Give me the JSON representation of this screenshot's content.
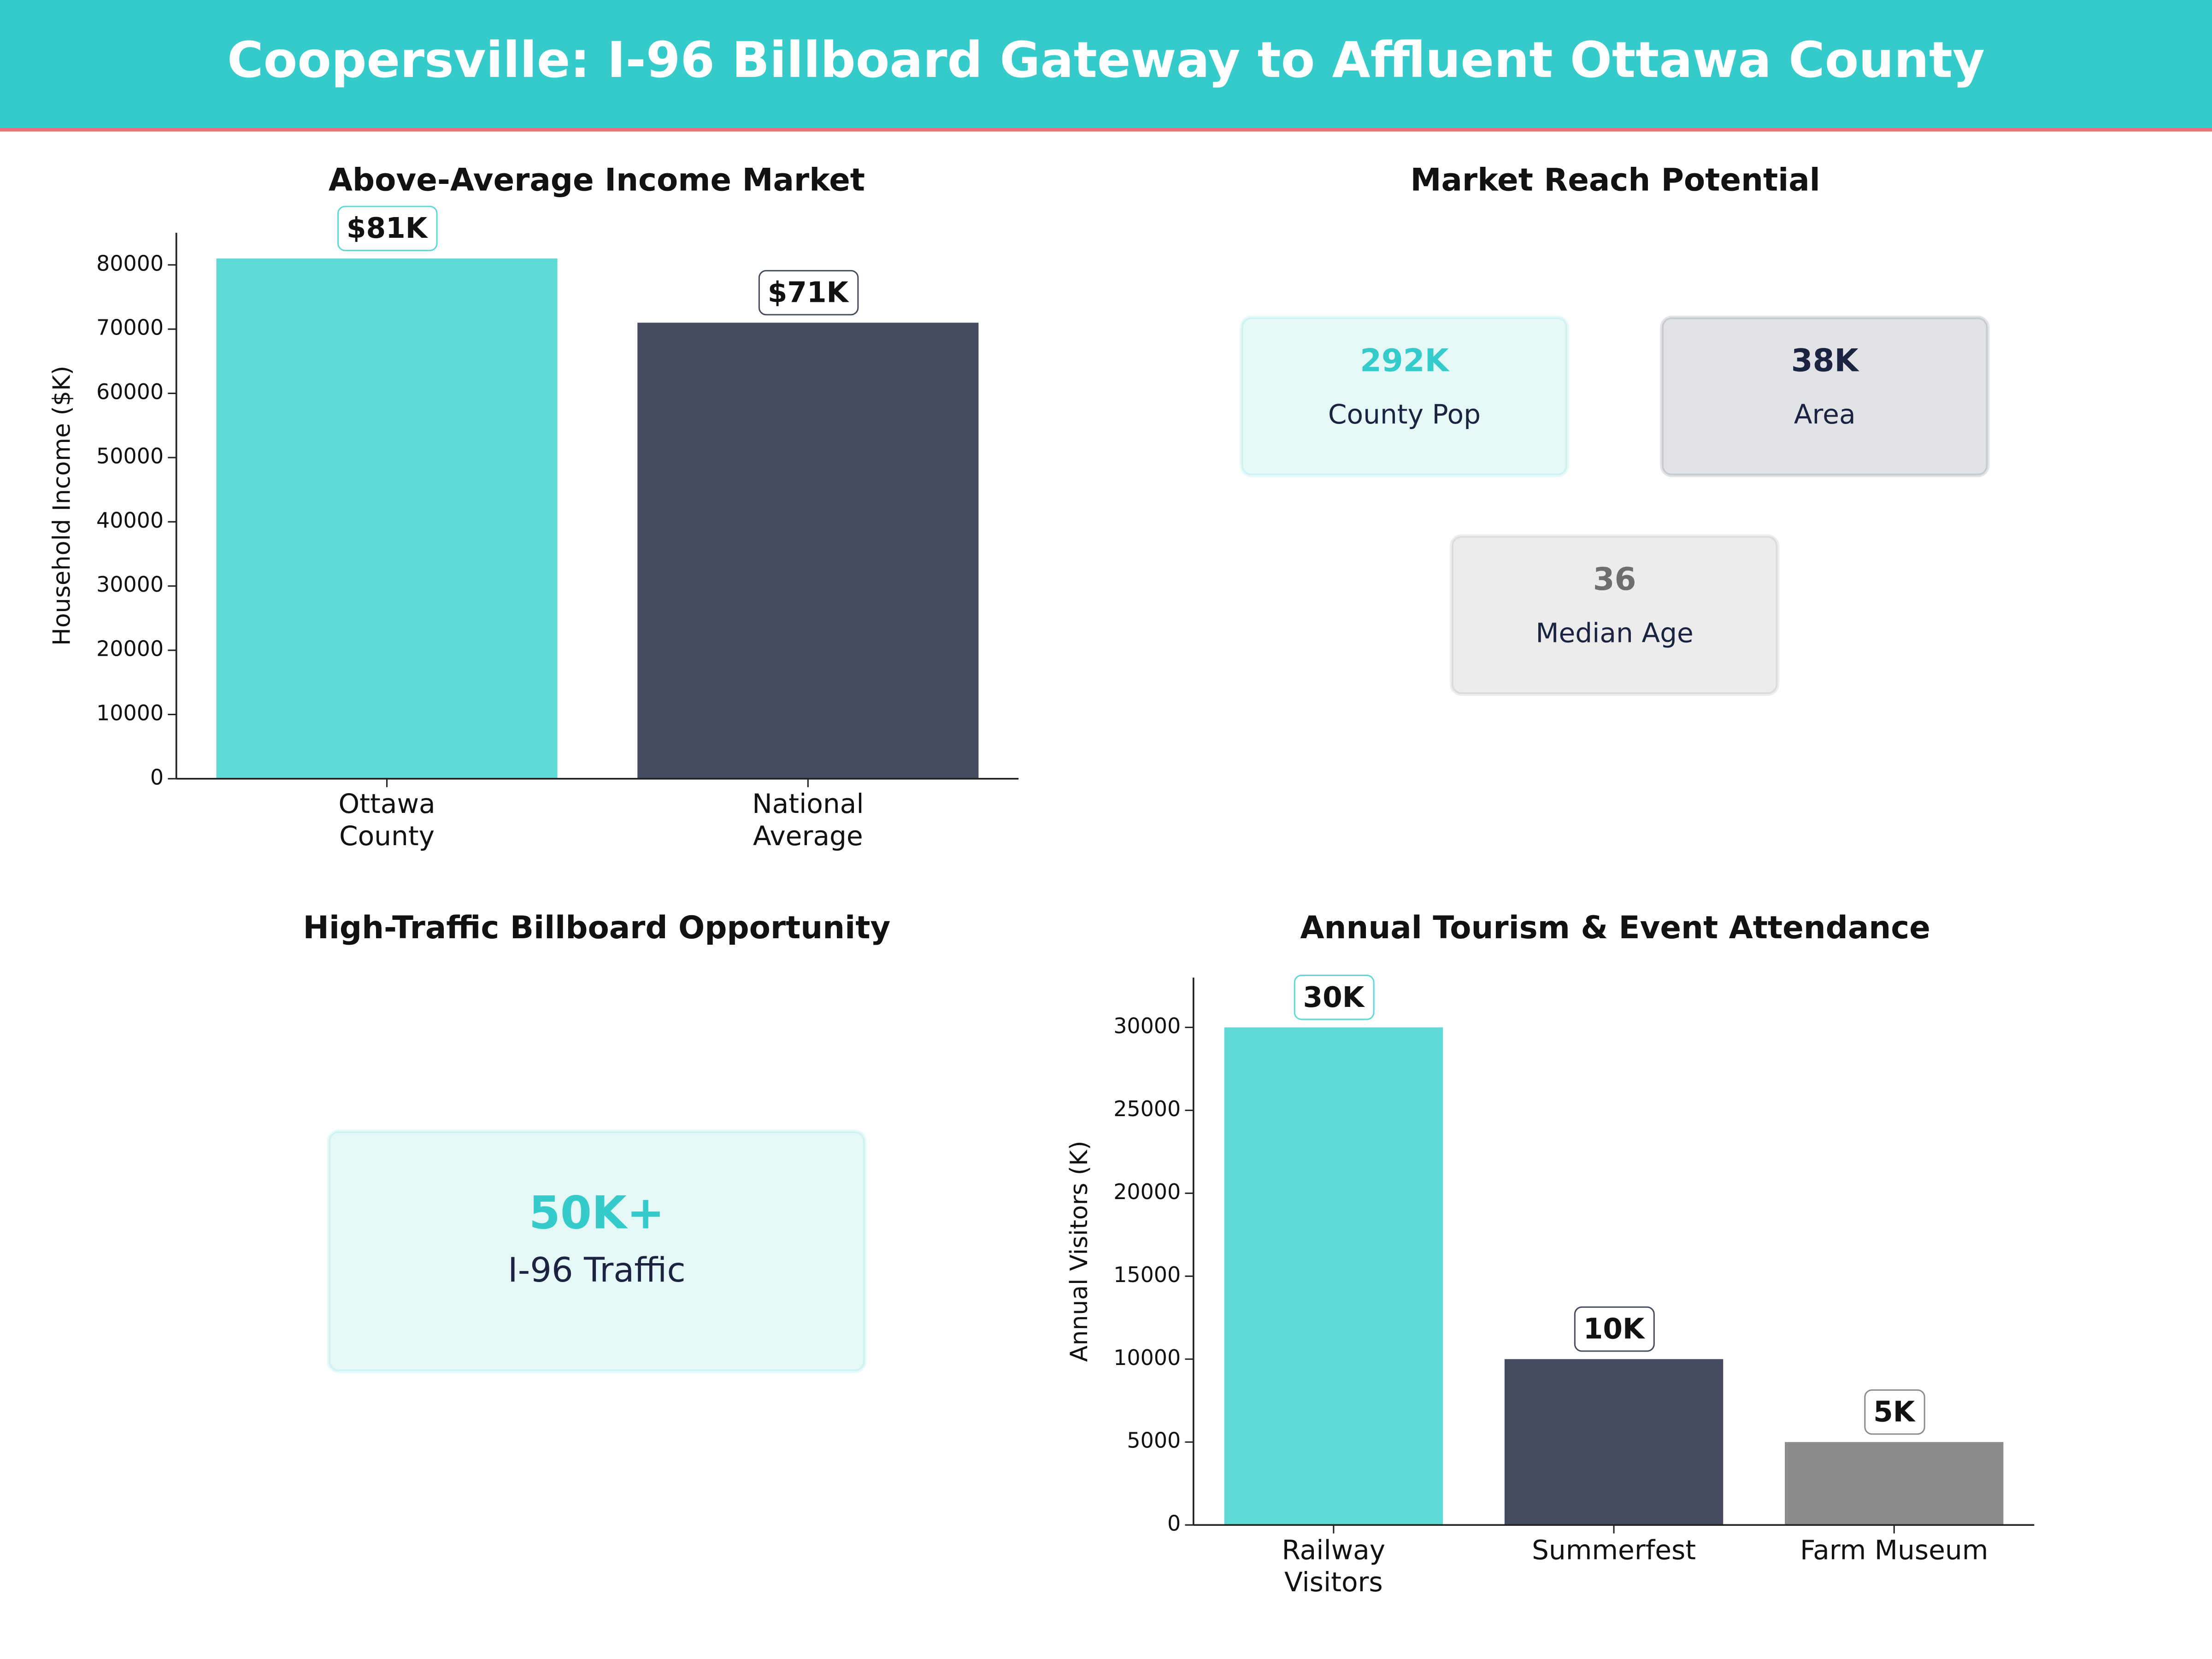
{
  "title": "Coopersville: I-96 Billboard Gateway to Affluent Ottawa County",
  "chart_data": [
    {
      "type": "bar",
      "title": "Above-Average Income Market",
      "y_label": "Household Income ($K)",
      "categories": [
        "Ottawa\nCounty",
        "National\nAverage"
      ],
      "values": [
        81000,
        71000
      ],
      "value_labels": [
        "$81K",
        "$71K"
      ],
      "colors": [
        "#5ed9d6",
        "#464b60"
      ],
      "ylim": [
        0,
        85000
      ],
      "yticks": [
        0,
        10000,
        20000,
        30000,
        40000,
        50000,
        60000,
        70000,
        80000
      ]
    },
    {
      "type": "kpi",
      "title": "Market Reach Potential",
      "cards": [
        {
          "value": "292K",
          "label": "County Pop",
          "color": "#36cbcb"
        },
        {
          "value": "38K",
          "label": "Area",
          "color": "#1b2340"
        },
        {
          "value": "36",
          "label": "Median Age",
          "color": "#6e6e6e"
        }
      ]
    },
    {
      "type": "kpi",
      "title": "High-Traffic Billboard Opportunity",
      "cards": [
        {
          "value": "50K+",
          "label": "I-96 Traffic",
          "color": "#36cbcb"
        }
      ]
    },
    {
      "type": "bar",
      "title": "Annual Tourism & Event Attendance",
      "y_label": "Annual Visitors (K)",
      "categories": [
        "Railway\nVisitors",
        "Summerfest",
        "Farm Museum"
      ],
      "values": [
        30000,
        10000,
        5000
      ],
      "value_labels": [
        "30K",
        "10K",
        "5K"
      ],
      "colors": [
        "#5ed9d6",
        "#464b60",
        "#8c8c8c"
      ],
      "ylim": [
        0,
        33000
      ],
      "yticks": [
        0,
        5000,
        10000,
        15000,
        20000,
        25000,
        30000
      ]
    }
  ]
}
